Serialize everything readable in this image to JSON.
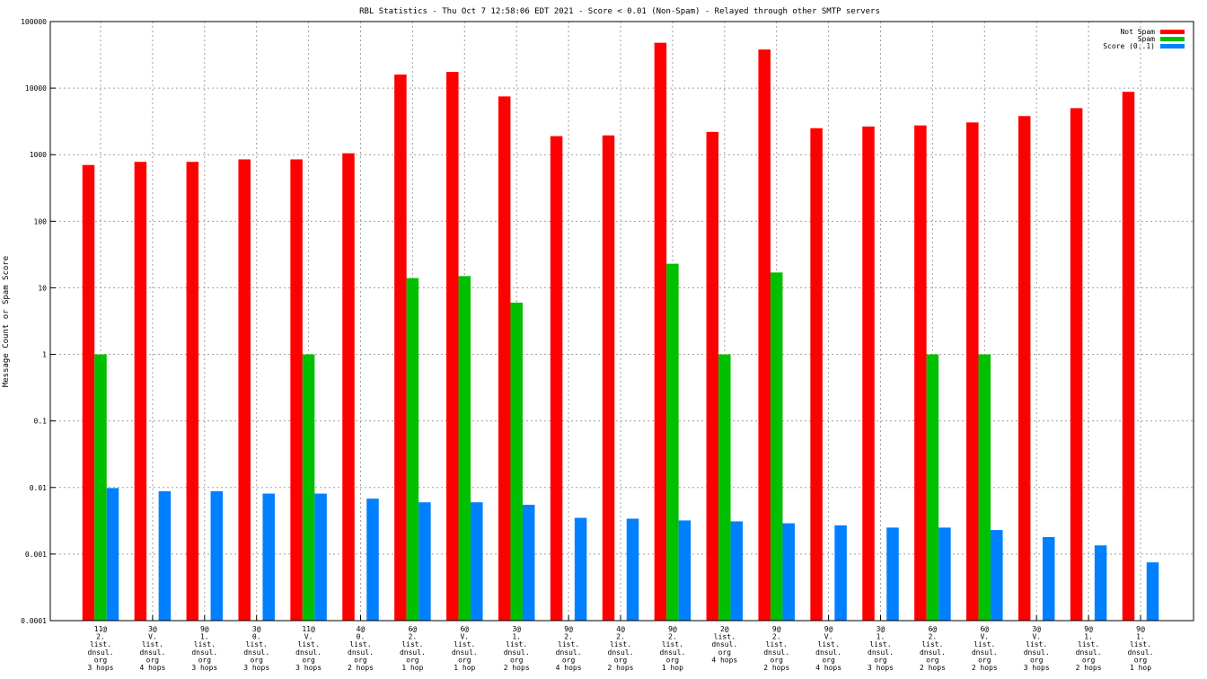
{
  "chart_data": {
    "type": "bar",
    "title": "RBL Statistics - Thu Oct  7 12:58:06 EDT 2021 - Score < 0.01 (Non-Spam) - Relayed through other SMTP servers",
    "ylabel": "Message Count or Spam Score",
    "xlabel": "",
    "yscale": "log",
    "ylim": [
      0.0001,
      100000
    ],
    "yticks": [
      "0.0001",
      "0.001",
      "0.01",
      "0.1",
      "1",
      "10",
      "100",
      "1000",
      "10000",
      "100000"
    ],
    "grid": true,
    "legend_position": "top-right",
    "categories": [
      [
        "11@",
        "2.",
        "list.",
        "dnsul.",
        "org",
        "3 hops"
      ],
      [
        "3@",
        "V.",
        "list.",
        "dnsul.",
        "org",
        "4 hops"
      ],
      [
        "9@",
        "1.",
        "list.",
        "dnsul.",
        "org",
        "3 hops"
      ],
      [
        "3@",
        "0.",
        "list.",
        "dnsul.",
        "org",
        "3 hops"
      ],
      [
        "11@",
        "V.",
        "list.",
        "dnsul.",
        "org",
        "3 hops"
      ],
      [
        "4@",
        "0.",
        "list.",
        "dnsul.",
        "org",
        "2 hops"
      ],
      [
        "6@",
        "2.",
        "list.",
        "dnsul.",
        "org",
        "1 hop"
      ],
      [
        "6@",
        "V.",
        "list.",
        "dnsul.",
        "org",
        "1 hop"
      ],
      [
        "3@",
        "1.",
        "list.",
        "dnsul.",
        "org",
        "2 hops"
      ],
      [
        "9@",
        "2.",
        "list.",
        "dnsul.",
        "org",
        "4 hops"
      ],
      [
        "4@",
        "2.",
        "list.",
        "dnsul.",
        "org",
        "2 hops"
      ],
      [
        "9@",
        "2.",
        "list.",
        "dnsul.",
        "org",
        "1 hop"
      ],
      [
        "2@",
        "list.",
        "dnsul.",
        "org",
        "4 hops"
      ],
      [
        "9@",
        "2.",
        "list.",
        "dnsul.",
        "org",
        "2 hops"
      ],
      [
        "9@",
        "V.",
        "list.",
        "dnsul.",
        "org",
        "4 hops"
      ],
      [
        "3@",
        "1.",
        "list.",
        "dnsul.",
        "org",
        "3 hops"
      ],
      [
        "6@",
        "2.",
        "list.",
        "dnsul.",
        "org",
        "2 hops"
      ],
      [
        "6@",
        "V.",
        "list.",
        "dnsul.",
        "org",
        "2 hops"
      ],
      [
        "3@",
        "V.",
        "list.",
        "dnsul.",
        "org",
        "3 hops"
      ],
      [
        "9@",
        "1.",
        "list.",
        "dnsul.",
        "org",
        "2 hops"
      ],
      [
        "9@",
        "1.",
        "list.",
        "dnsul.",
        "org",
        "1 hop"
      ]
    ],
    "series": [
      {
        "name": "Not Spam",
        "color": "#ff0000",
        "values": [
          700,
          780,
          780,
          850,
          850,
          1050,
          16000,
          17500,
          7500,
          1900,
          1950,
          48000,
          2200,
          38000,
          2500,
          2650,
          2750,
          3050,
          3800,
          5000,
          8800
        ]
      },
      {
        "name": "Spam",
        "color": "#00c000",
        "values": [
          1,
          null,
          null,
          null,
          1,
          null,
          14,
          15,
          6,
          null,
          null,
          23,
          1,
          17,
          null,
          null,
          1,
          1,
          null,
          null,
          null
        ]
      },
      {
        "name": "Score (0..1)",
        "color": "#0080ff",
        "values": [
          0.0098,
          0.0088,
          0.0088,
          0.0081,
          0.0081,
          0.0068,
          0.006,
          0.006,
          0.0055,
          0.0035,
          0.0034,
          0.0032,
          0.0031,
          0.0029,
          0.0027,
          0.0025,
          0.0025,
          0.0023,
          0.0018,
          0.00135,
          0.00075
        ]
      }
    ]
  }
}
